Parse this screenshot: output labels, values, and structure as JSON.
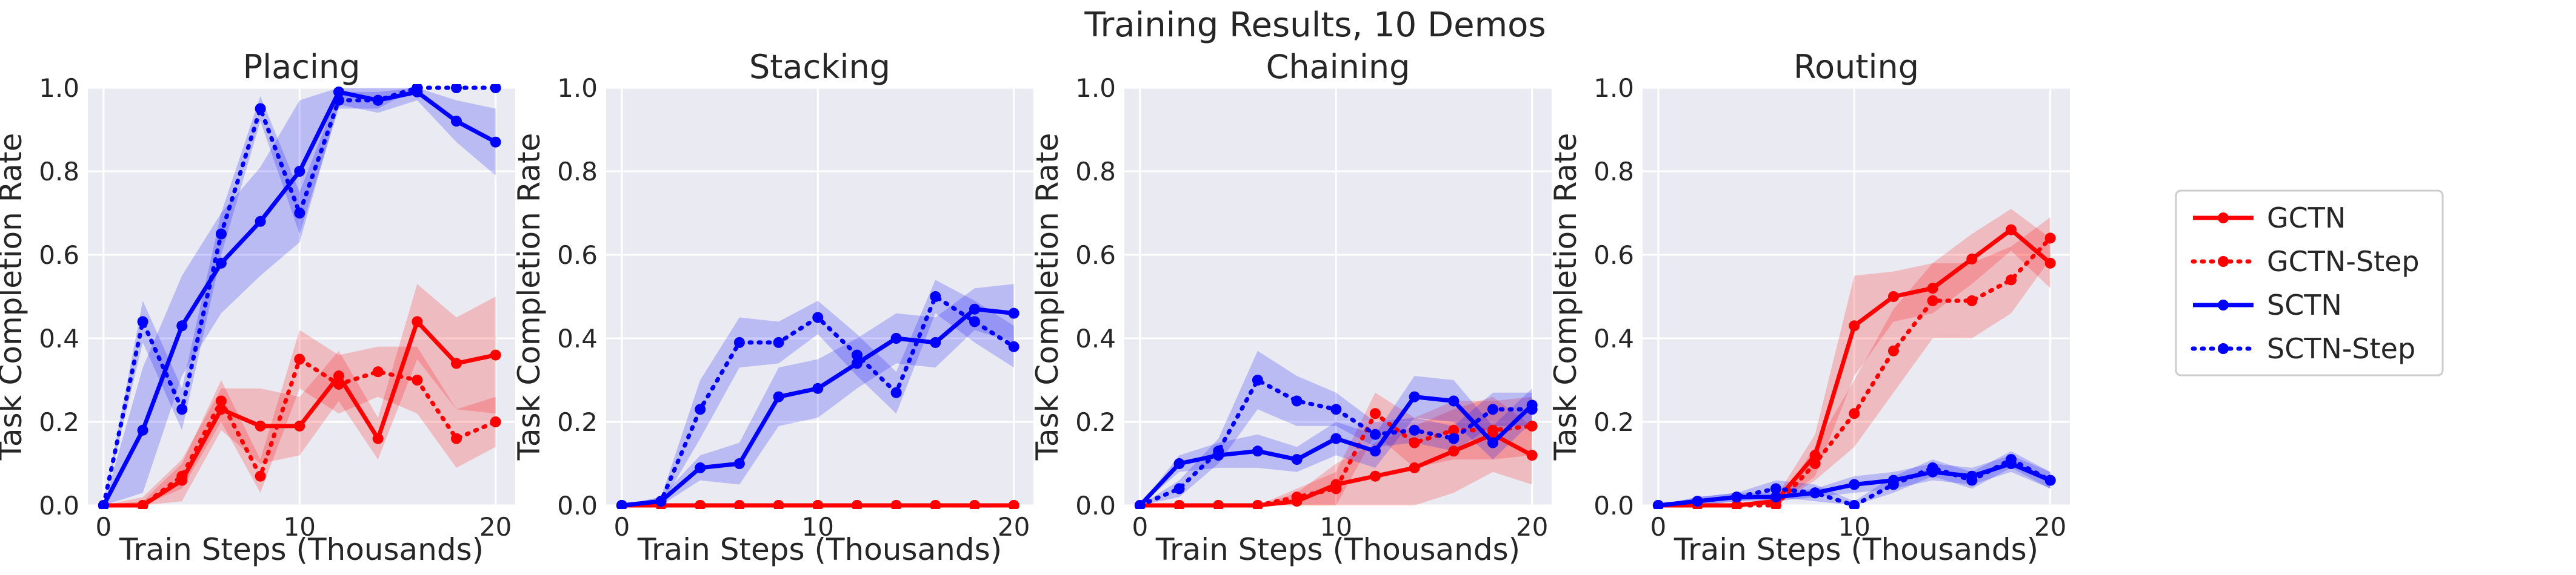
{
  "figure": {
    "suptitle": "Training Results, 10 Demos"
  },
  "colors": {
    "gctn": "#ff0000",
    "sctn": "#0000ff",
    "panel_background": "#eaeaf2",
    "grid": "#ffffff",
    "text": "#262626"
  },
  "legend": {
    "placement": "right",
    "entries": [
      {
        "label": "GCTN",
        "color": "#ff0000",
        "style": "solid"
      },
      {
        "label": "GCTN-Step",
        "color": "#ff0000",
        "style": "dotted"
      },
      {
        "label": "SCTN",
        "color": "#0000ff",
        "style": "solid"
      },
      {
        "label": "SCTN-Step",
        "color": "#0000ff",
        "style": "dotted"
      }
    ]
  },
  "chart_data": [
    {
      "type": "line",
      "title": "Placing",
      "xlabel": "Train Steps (Thousands)",
      "ylabel": "Task Completion Rate",
      "xlim": [
        -0.8,
        21
      ],
      "ylim": [
        0,
        1.0
      ],
      "xticks": [
        "0",
        "10",
        "20"
      ],
      "yticks": [
        "0.0",
        "0.2",
        "0.4",
        "0.6",
        "0.8",
        "1.0"
      ],
      "grid": true,
      "x": [
        0,
        2,
        4,
        6,
        8,
        10,
        12,
        14,
        16,
        18,
        20
      ],
      "series": [
        {
          "name": "GCTN",
          "values": [
            0.0,
            0.0,
            0.06,
            0.23,
            0.19,
            0.19,
            0.31,
            0.16,
            0.44,
            0.34,
            0.36
          ],
          "band": [
            0.0,
            0.02,
            0.05,
            0.05,
            0.09,
            0.07,
            0.06,
            0.05,
            0.09,
            0.11,
            0.14
          ]
        },
        {
          "name": "GCTN-Step",
          "values": [
            0.0,
            0.0,
            0.07,
            0.25,
            0.07,
            0.35,
            0.29,
            0.32,
            0.3,
            0.16,
            0.2
          ],
          "band": [
            0.0,
            0.01,
            0.03,
            0.05,
            0.04,
            0.07,
            0.07,
            0.06,
            0.08,
            0.07,
            0.06
          ]
        },
        {
          "name": "SCTN",
          "values": [
            0.0,
            0.18,
            0.43,
            0.58,
            0.68,
            0.8,
            0.99,
            0.97,
            0.99,
            0.92,
            0.87
          ],
          "band": [
            0.0,
            0.15,
            0.12,
            0.12,
            0.13,
            0.17,
            0.03,
            0.03,
            0.02,
            0.05,
            0.08
          ]
        },
        {
          "name": "SCTN-Step",
          "values": [
            0.0,
            0.44,
            0.23,
            0.65,
            0.95,
            0.7,
            0.97,
            0.97,
            1.0,
            1.0,
            1.0
          ],
          "band": [
            0.0,
            0.05,
            0.05,
            0.05,
            0.03,
            0.05,
            0.02,
            0.02,
            0.0,
            0.0,
            0.0
          ]
        }
      ]
    },
    {
      "type": "line",
      "title": "Stacking",
      "xlabel": "Train Steps (Thousands)",
      "ylabel": "Task Completion Rate",
      "xlim": [
        -0.8,
        21
      ],
      "ylim": [
        0,
        1.0
      ],
      "xticks": [
        "0",
        "10",
        "20"
      ],
      "yticks": [
        "0.0",
        "0.2",
        "0.4",
        "0.6",
        "0.8",
        "1.0"
      ],
      "grid": true,
      "x": [
        0,
        2,
        4,
        6,
        8,
        10,
        12,
        14,
        16,
        18,
        20
      ],
      "series": [
        {
          "name": "GCTN",
          "values": [
            0,
            0,
            0,
            0,
            0,
            0,
            0,
            0,
            0,
            0,
            0
          ],
          "band": [
            0,
            0,
            0,
            0,
            0,
            0,
            0,
            0,
            0,
            0,
            0
          ]
        },
        {
          "name": "GCTN-Step",
          "values": [
            0,
            0,
            0,
            0,
            0,
            0,
            0,
            0,
            0,
            0,
            0
          ],
          "band": [
            0,
            0,
            0,
            0,
            0,
            0,
            0,
            0,
            0,
            0,
            0
          ]
        },
        {
          "name": "SCTN",
          "values": [
            0.0,
            0.01,
            0.09,
            0.1,
            0.26,
            0.28,
            0.34,
            0.4,
            0.39,
            0.47,
            0.46
          ],
          "band": [
            0.0,
            0.01,
            0.03,
            0.05,
            0.07,
            0.07,
            0.06,
            0.06,
            0.06,
            0.05,
            0.07
          ]
        },
        {
          "name": "SCTN-Step",
          "values": [
            0.0,
            0.01,
            0.23,
            0.39,
            0.39,
            0.45,
            0.36,
            0.27,
            0.5,
            0.44,
            0.38
          ],
          "band": [
            0.0,
            0.01,
            0.07,
            0.06,
            0.05,
            0.04,
            0.05,
            0.05,
            0.04,
            0.05,
            0.05
          ]
        }
      ]
    },
    {
      "type": "line",
      "title": "Chaining",
      "xlabel": "Train Steps (Thousands)",
      "ylabel": "Task Completion Rate",
      "xlim": [
        -0.8,
        21
      ],
      "ylim": [
        0,
        1.0
      ],
      "xticks": [
        "0",
        "10",
        "20"
      ],
      "yticks": [
        "0.0",
        "0.2",
        "0.4",
        "0.6",
        "0.8",
        "1.0"
      ],
      "grid": true,
      "x": [
        0,
        2,
        4,
        6,
        8,
        10,
        12,
        14,
        16,
        18,
        20
      ],
      "series": [
        {
          "name": "GCTN",
          "values": [
            0.0,
            0.0,
            0.0,
            0.0,
            0.01,
            0.05,
            0.07,
            0.09,
            0.13,
            0.17,
            0.12
          ],
          "band": [
            0.0,
            0.0,
            0.0,
            0.0,
            0.02,
            0.05,
            0.08,
            0.1,
            0.1,
            0.09,
            0.07
          ]
        },
        {
          "name": "GCTN-Step",
          "values": [
            0.0,
            0.0,
            0.0,
            0.0,
            0.02,
            0.04,
            0.22,
            0.15,
            0.18,
            0.18,
            0.19
          ],
          "band": [
            0.0,
            0.0,
            0.0,
            0.0,
            0.02,
            0.04,
            0.05,
            0.06,
            0.07,
            0.07,
            0.07
          ]
        },
        {
          "name": "SCTN",
          "values": [
            0.0,
            0.1,
            0.12,
            0.13,
            0.11,
            0.16,
            0.13,
            0.26,
            0.25,
            0.15,
            0.24
          ],
          "band": [
            0.0,
            0.02,
            0.03,
            0.04,
            0.03,
            0.04,
            0.04,
            0.05,
            0.05,
            0.04,
            0.04
          ]
        },
        {
          "name": "SCTN-Step",
          "values": [
            0.0,
            0.04,
            0.13,
            0.3,
            0.25,
            0.23,
            0.17,
            0.18,
            0.16,
            0.23,
            0.23
          ],
          "band": [
            0.0,
            0.02,
            0.03,
            0.07,
            0.06,
            0.04,
            0.03,
            0.03,
            0.03,
            0.04,
            0.04
          ]
        }
      ]
    },
    {
      "type": "line",
      "title": "Routing",
      "xlabel": "Train Steps (Thousands)",
      "ylabel": "Task Completion Rate",
      "xlim": [
        -0.8,
        21
      ],
      "ylim": [
        0,
        1.0
      ],
      "xticks": [
        "0",
        "10",
        "20"
      ],
      "yticks": [
        "0.0",
        "0.2",
        "0.4",
        "0.6",
        "0.8",
        "1.0"
      ],
      "grid": true,
      "x": [
        0,
        2,
        4,
        6,
        8,
        10,
        12,
        14,
        16,
        18,
        20
      ],
      "series": [
        {
          "name": "GCTN",
          "values": [
            0.0,
            0.0,
            0.0,
            0.01,
            0.12,
            0.43,
            0.5,
            0.52,
            0.59,
            0.66,
            0.58
          ],
          "band": [
            0.0,
            0.0,
            0.0,
            0.01,
            0.05,
            0.12,
            0.06,
            0.06,
            0.06,
            0.05,
            0.06
          ]
        },
        {
          "name": "GCTN-Step",
          "values": [
            0.0,
            0.0,
            0.0,
            0.0,
            0.1,
            0.22,
            0.37,
            0.49,
            0.49,
            0.54,
            0.64
          ],
          "band": [
            0.0,
            0.0,
            0.0,
            0.0,
            0.04,
            0.08,
            0.1,
            0.09,
            0.09,
            0.08,
            0.05
          ]
        },
        {
          "name": "SCTN",
          "values": [
            0.0,
            0.01,
            0.02,
            0.02,
            0.03,
            0.05,
            0.06,
            0.08,
            0.07,
            0.1,
            0.06
          ],
          "band": [
            0.0,
            0.01,
            0.01,
            0.01,
            0.01,
            0.02,
            0.02,
            0.02,
            0.02,
            0.02,
            0.02
          ]
        },
        {
          "name": "SCTN-Step",
          "values": [
            0.0,
            0.01,
            0.02,
            0.04,
            0.03,
            0.0,
            0.05,
            0.09,
            0.06,
            0.11,
            0.06
          ],
          "band": [
            0.0,
            0.01,
            0.01,
            0.02,
            0.02,
            0.01,
            0.02,
            0.02,
            0.02,
            0.02,
            0.02
          ]
        }
      ]
    }
  ]
}
